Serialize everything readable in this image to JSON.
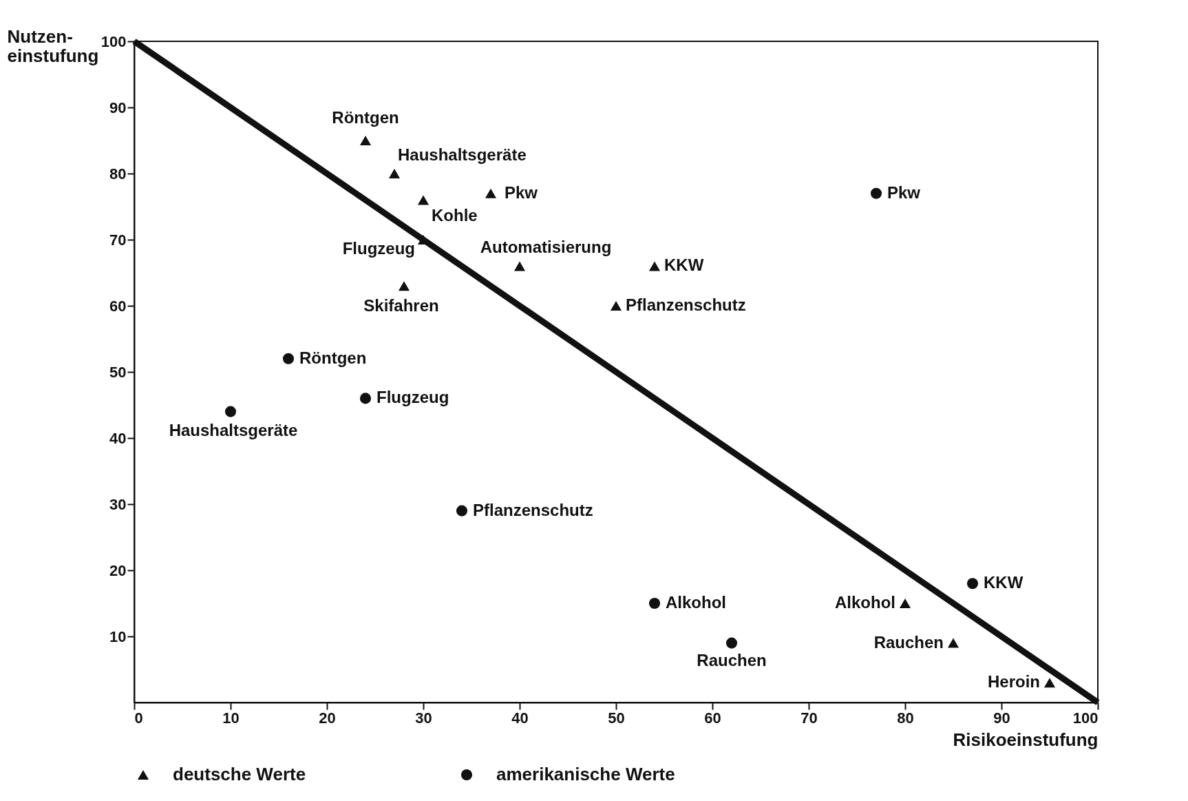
{
  "chart_data": {
    "type": "scatter",
    "xlabel": "Risikoeinstufung",
    "ylabel": "Nutzen-\neinstufung",
    "xlim": [
      0,
      100
    ],
    "ylim": [
      0,
      100
    ],
    "xticks": [
      0,
      10,
      20,
      30,
      40,
      50,
      60,
      70,
      80,
      90,
      100
    ],
    "yticks": [
      10,
      20,
      30,
      40,
      50,
      60,
      70,
      80,
      90,
      100
    ],
    "grid": false,
    "legend": "bottom",
    "series": [
      {
        "name": "deutsche Werte",
        "marker": "triangle",
        "color": "#111111",
        "x": [
          24,
          27,
          30,
          37,
          30,
          40,
          54,
          28,
          50,
          80,
          85,
          95
        ],
        "values": [
          85,
          80,
          76,
          77,
          70,
          66,
          66,
          63,
          60,
          15,
          9,
          3
        ]
      },
      {
        "name": "amerikanische Werte",
        "marker": "circle",
        "color": "#111111",
        "x": [
          77,
          16,
          24,
          10,
          34,
          87,
          54,
          62
        ],
        "values": [
          77,
          52,
          46,
          44,
          29,
          18,
          15,
          9
        ]
      },
      {
        "type": "line",
        "marker": "none",
        "line_style": "solid",
        "color": "#111111",
        "x": [
          0,
          100
        ],
        "values": [
          100,
          0
        ]
      }
    ],
    "annotations": [
      {
        "text": "Röntgen",
        "x": 24,
        "y": 85
      },
      {
        "text": "Haushaltsgeräte",
        "x": 27,
        "y": 80
      },
      {
        "text": "Kohle",
        "x": 30,
        "y": 76
      },
      {
        "text": "Pkw",
        "x": 37,
        "y": 77
      },
      {
        "text": "Flugzeug",
        "x": 30,
        "y": 70
      },
      {
        "text": "Automatisierung",
        "x": 40,
        "y": 66
      },
      {
        "text": "KKW",
        "x": 54,
        "y": 66
      },
      {
        "text": "Skifahren",
        "x": 28,
        "y": 63
      },
      {
        "text": "Pflanzenschutz",
        "x": 50,
        "y": 60
      },
      {
        "text": "Alkohol",
        "x": 80,
        "y": 15
      },
      {
        "text": "Rauchen",
        "x": 85,
        "y": 9
      },
      {
        "text": "Heroin",
        "x": 95,
        "y": 3
      },
      {
        "text": "Pkw",
        "x": 77,
        "y": 77
      },
      {
        "text": "Röntgen",
        "x": 16,
        "y": 52
      },
      {
        "text": "Flugzeug",
        "x": 24,
        "y": 46
      },
      {
        "text": "Haushaltsgeräte",
        "x": 10,
        "y": 44
      },
      {
        "text": "Pflanzenschutz",
        "x": 34,
        "y": 29
      },
      {
        "text": "KKW",
        "x": 87,
        "y": 18
      },
      {
        "text": "Alkohol",
        "x": 54,
        "y": 15
      },
      {
        "text": "Rauchen",
        "x": 62,
        "y": 9
      }
    ]
  }
}
